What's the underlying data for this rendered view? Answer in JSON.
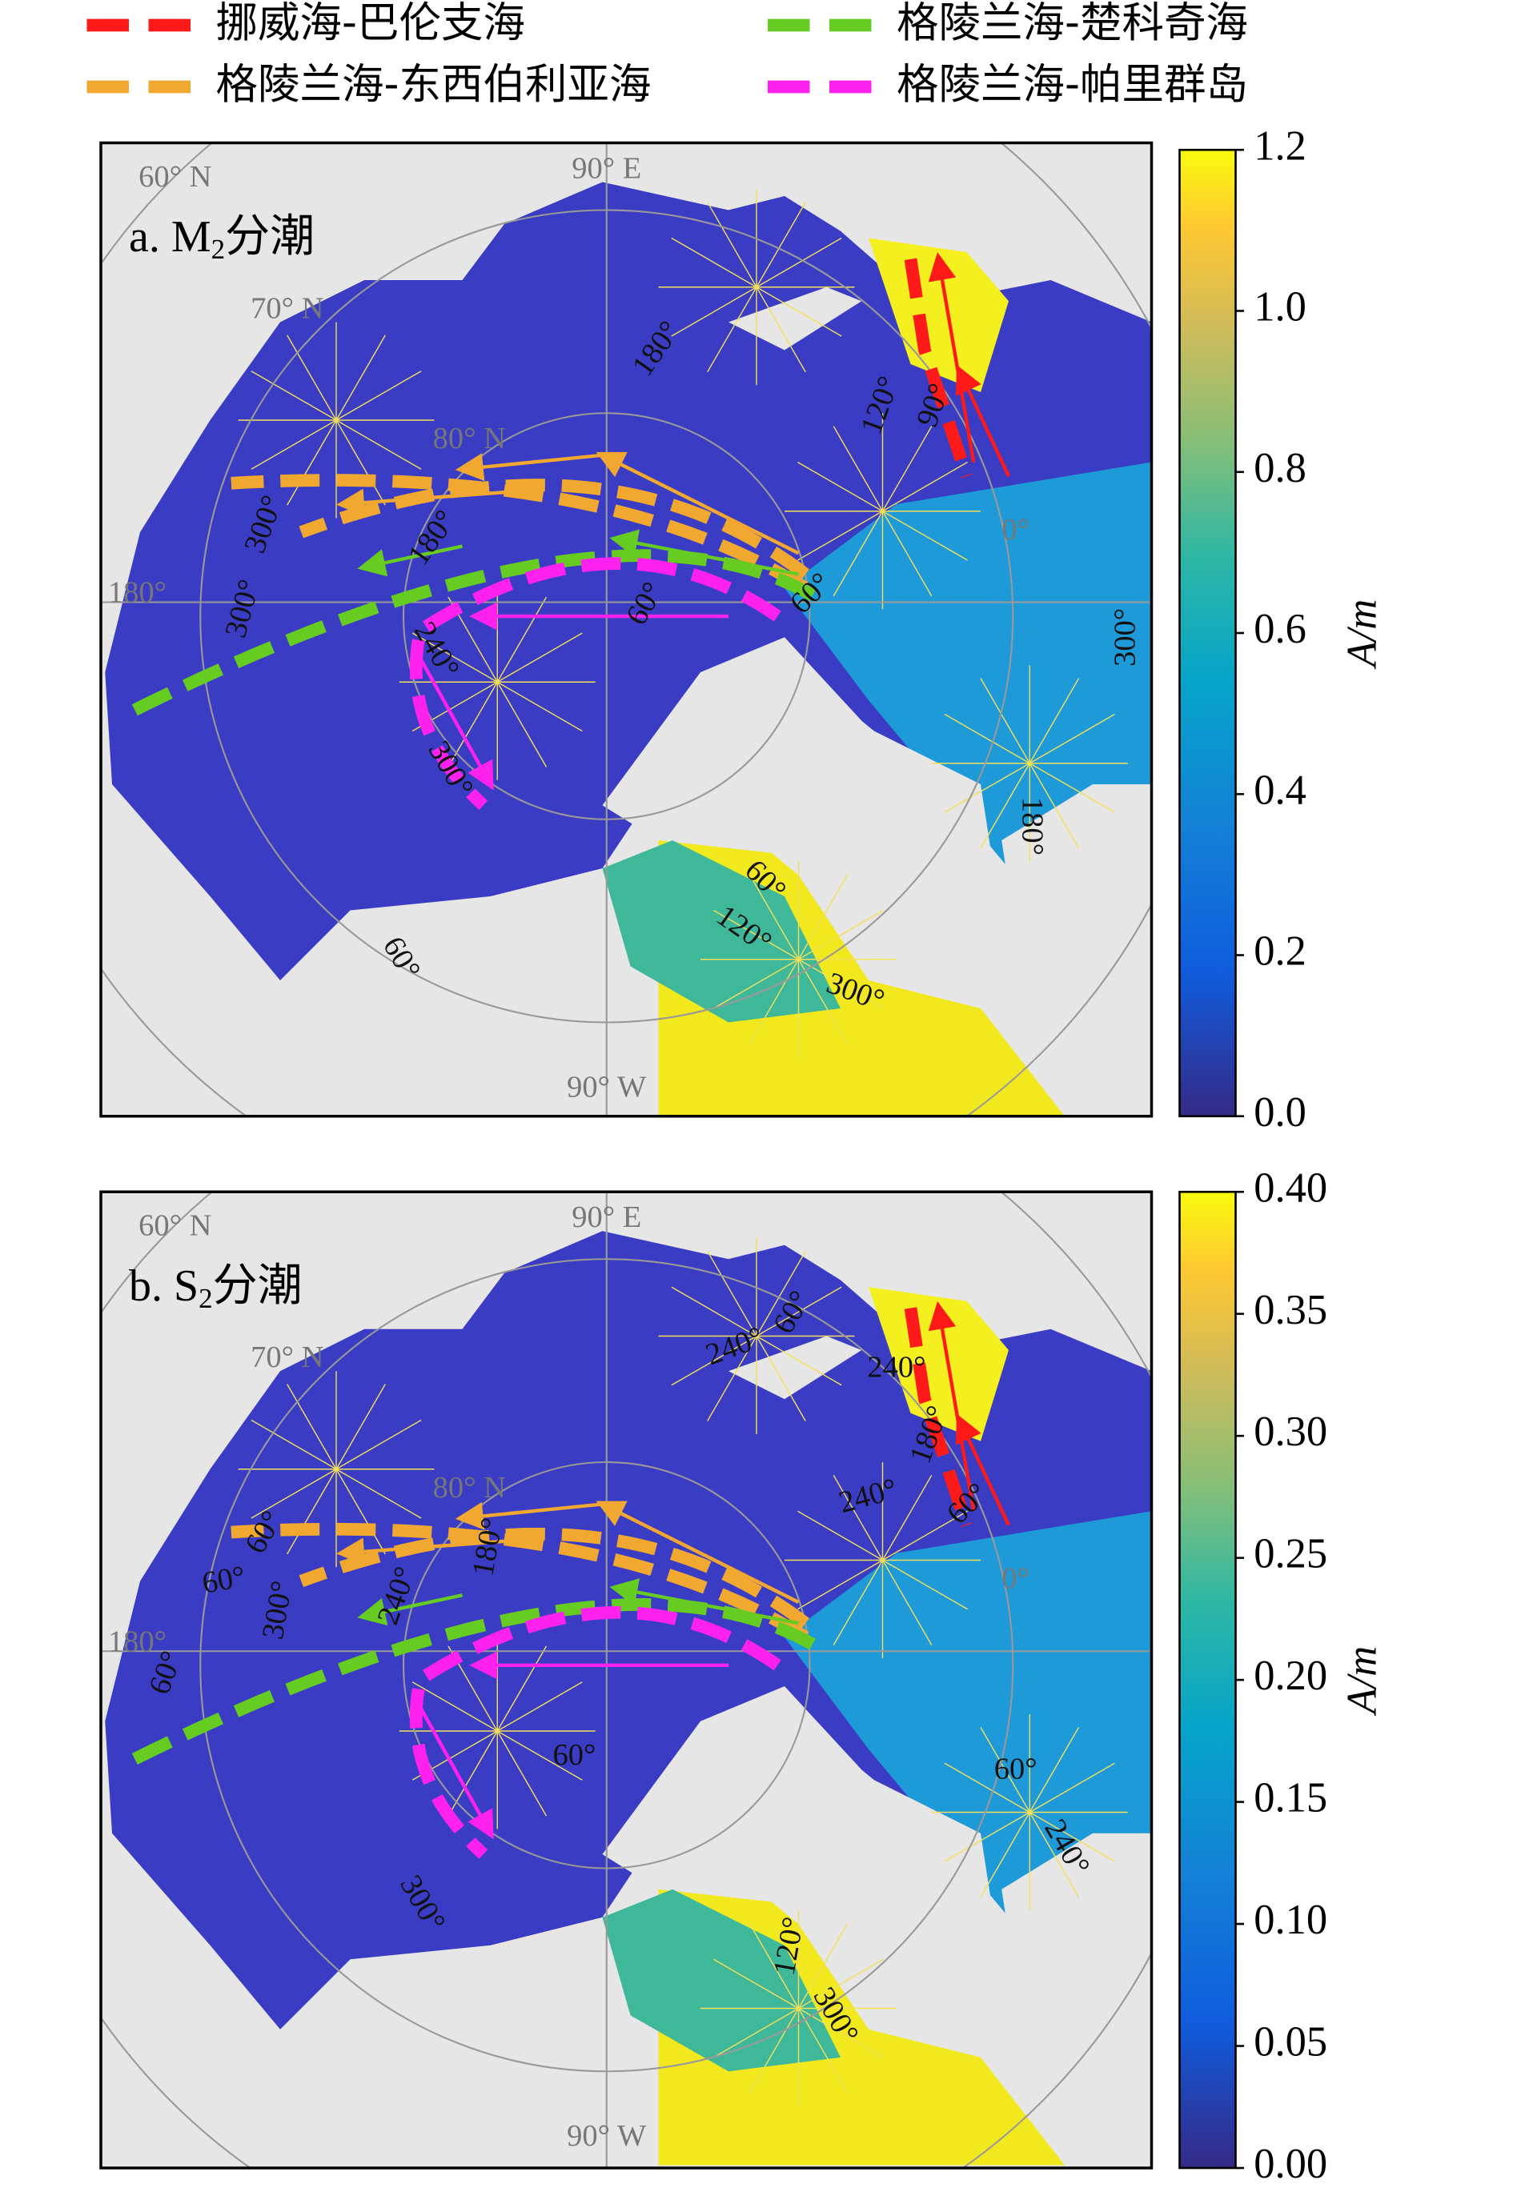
{
  "legend": [
    {
      "label": "挪威海-巴伦支海",
      "color": "#ff1a1a"
    },
    {
      "label": "格陵兰海-楚科奇海",
      "color": "#66cc22"
    },
    {
      "label": "格陵兰海-东西伯利亚海",
      "color": "#f0a830"
    },
    {
      "label": "格陵兰海-帕里群岛",
      "color": "#ff22ee"
    }
  ],
  "panels": [
    {
      "label": "a. M",
      "label_sub": "2",
      "label_suffix": "分潮",
      "grid_labels": [
        "60° N",
        "90° E",
        "70° N",
        "80° N",
        "180°",
        "0°",
        "90° W"
      ],
      "phase_labels": [
        "180°",
        "120°",
        "90°",
        "300°",
        "180°",
        "300°",
        "240°",
        "60°",
        "60°",
        "300°",
        "300°",
        "180°",
        "60°",
        "120°",
        "300°",
        "60°"
      ],
      "colorbar": {
        "label": "A/m",
        "lim": [
          0,
          1.2
        ],
        "ticks": [
          {
            "value": 0,
            "label": "0.0"
          },
          0.2,
          0.4,
          0.6,
          0.8,
          {
            "value": 1,
            "label": "1.0"
          },
          1.2
        ]
      }
    },
    {
      "label": "b. S",
      "label_sub": "2",
      "label_suffix": "分潮",
      "grid_labels": [
        "60° N",
        "90° E",
        "70° N",
        "80° N",
        "180°",
        "0°",
        "90° W"
      ],
      "phase_labels": [
        "240°",
        "60°",
        "240°",
        "180°",
        "240°",
        "60°",
        "60°",
        "60°",
        "300°",
        "240°",
        "180°",
        "60°",
        "60°",
        "60°",
        "240°",
        "300°",
        "120°",
        "300°"
      ],
      "colorbar": {
        "label": "A/m",
        "lim": [
          0,
          0.4
        ],
        "ticks": [
          {
            "value": 0,
            "label": "0.00"
          },
          0.05,
          {
            "value": 0.1,
            "label": "0.10"
          },
          0.15,
          {
            "value": 0.2,
            "label": "0.20"
          },
          0.25,
          {
            "value": 0.3,
            "label": "0.30"
          },
          0.35,
          {
            "value": 0.4,
            "label": "0.40"
          }
        ]
      }
    }
  ]
}
